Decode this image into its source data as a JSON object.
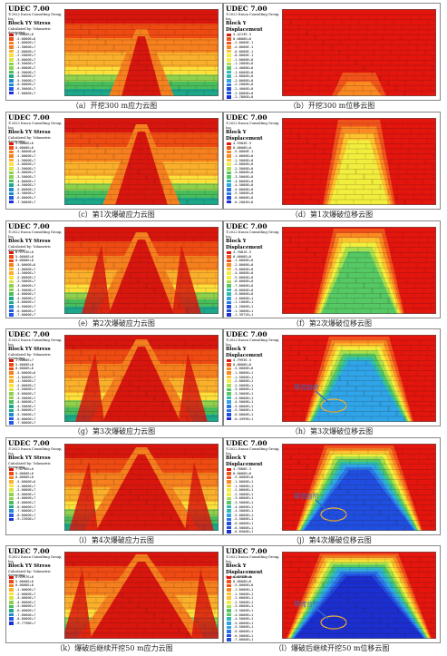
{
  "panels": [
    {
      "udec": "UDEC 7.00",
      "copyright": "©2022 Itasca Consulting Group, Inc.",
      "title": "Block YY Stress",
      "subtitle": "Calculated by: Volumetric Averaging",
      "kind": "stress",
      "stage": 0,
      "legend": [
        "0.0000E+0",
        "-5.0000E+6",
        "-1.0000E+7",
        "-1.5000E+7",
        "-2.0000E+7",
        "-2.5000E+7",
        "-3.0000E+7",
        "-3.5000E+7",
        "-4.0000E+7",
        "-4.5000E+7",
        "-5.0000E+7",
        "-5.5000E+7",
        "-6.0000E+7",
        "-6.5000E+7",
        "-7.0000E+7"
      ],
      "caption": "（a）开挖300 m应力云图"
    },
    {
      "udec": "UDEC 7.00",
      "copyright": "©2022 Itasca Consulting Group, Inc.",
      "title": "Block Y Displacement",
      "subtitle": "",
      "kind": "disp",
      "stage": 0,
      "legend": [
        "4.4213E-3",
        "0.0000E+0",
        "-2.0000E-1",
        "-4.0000E-1",
        "-6.0000E-1",
        "-8.0000E-1",
        "-1.0000E+0",
        "-1.2000E+0",
        "-1.4000E+0",
        "-1.6000E+0",
        "-1.8000E+0",
        "-2.0000E+0",
        "-2.2000E+0",
        "-2.4000E+0",
        "-2.6000E+0",
        "-2.7886E+0"
      ],
      "caption": "（b）开挖300 m位移云图"
    },
    {
      "udec": "UDEC 7.00",
      "copyright": "©2022 Itasca Consulting Group, Inc.",
      "title": "Block YY Stress",
      "subtitle": "Calculated by: Volumetric Averaging",
      "kind": "stress",
      "stage": 1,
      "legend": [
        "5.0000E+6",
        "0.0000E+0",
        "-5.0000E+6",
        "-1.0000E+7",
        "-1.5000E+7",
        "-2.0000E+7",
        "-2.5000E+7",
        "-3.0000E+7",
        "-3.5000E+7",
        "-4.0000E+7",
        "-4.5000E+7",
        "-5.0000E+7",
        "-5.5000E+7",
        "-6.0000E+7",
        "-7.0000E+7"
      ],
      "caption": "（c）第1次爆破应力云图"
    },
    {
      "udec": "UDEC 7.00",
      "copyright": "©2022 Itasca Consulting Group, Inc.",
      "title": "Block Y Displacement",
      "subtitle": "",
      "kind": "disp",
      "stage": 1,
      "legend": [
        "4.5904E-3",
        "0.0000E+0",
        "-5.0000E-1",
        "-1.0000E+0",
        "-1.5000E+0",
        "-2.0000E+0",
        "-2.5000E+0",
        "-3.0000E+0",
        "-3.5000E+0",
        "-4.0000E+0",
        "-4.5000E+0",
        "-5.0000E+0",
        "-5.5000E+0",
        "-6.0000E+0",
        "-6.2004E+0"
      ],
      "caption": "（d）第1次爆破位移云图"
    },
    {
      "udec": "UDEC 7.00",
      "copyright": "©2022 Itasca Consulting Group, Inc.",
      "title": "Block YY Stress",
      "subtitle": "Calculated by: Volumetric Averaging",
      "kind": "stress",
      "stage": 2,
      "legend": [
        "8.9713E+6",
        "5.0000E+6",
        "0.0000E+0",
        "-5.0000E+6",
        "-1.0000E+7",
        "-1.5000E+7",
        "-2.0000E+7",
        "-2.5000E+7",
        "-3.0000E+7",
        "-3.5000E+7",
        "-4.0000E+7",
        "-4.5000E+7",
        "-5.0000E+7",
        "-5.5000E+7",
        "-6.0000E+7",
        "-7.0000E+7",
        "-8.0000E+7"
      ],
      "caption": "（e）第2次爆破应力云图"
    },
    {
      "udec": "UDEC 7.00",
      "copyright": "©2022 Itasca Consulting Group, Inc.",
      "title": "Block Y Displacement",
      "subtitle": "",
      "kind": "disp",
      "stage": 2,
      "legend": [
        "4.7081E-3",
        "0.0000E+0",
        "-1.0000E+0",
        "-2.0000E+0",
        "-3.0000E+0",
        "-4.0000E+0",
        "-5.0000E+0",
        "-6.0000E+0",
        "-7.0000E+0",
        "-8.0000E+0",
        "-9.0000E+0",
        "-1.0000E+1",
        "-1.1000E+1",
        "-1.2000E+1",
        "-1.3000E+1",
        "-1.3972E+1"
      ],
      "caption": "（f）第2次爆破位移云图"
    },
    {
      "udec": "UDEC 7.00",
      "copyright": "©2022 Itasca Consulting Group, Inc.",
      "title": "Block YY Stress",
      "subtitle": "Calculated by: Volumetric Averaging",
      "kind": "stress",
      "stage": 3,
      "legend": [
        "1.0000E+7",
        "5.0000E+6",
        "0.0000E+0",
        "-5.0000E+6",
        "-1.0000E+7",
        "-1.5000E+7",
        "-2.0000E+7",
        "-2.5000E+7",
        "-3.0000E+7",
        "-3.5000E+7",
        "-4.0000E+7",
        "-4.5000E+7",
        "-5.0000E+7",
        "-5.5000E+7",
        "-6.0000E+7",
        "-7.0000E+7",
        "-7.9011E+7"
      ],
      "caption": "（g）第3次爆破应力云图"
    },
    {
      "udec": "UDEC 7.00",
      "copyright": "©2022 Itasca Consulting Group, Inc.",
      "title": "Block Y Displacement",
      "subtitle": "",
      "kind": "disp",
      "stage": 3,
      "legend": [
        "4.7993E-3",
        "0.0000E+0",
        "-5.0000E+0",
        "-1.0000E+1",
        "-1.5000E+1",
        "-2.0000E+1",
        "-2.5000E+1",
        "-3.0000E+1",
        "-3.5000E+1",
        "-4.0000E+1",
        "-4.5000E+1",
        "-5.0000E+1",
        "-5.5000E+1",
        "-6.0000E+1",
        "-6.4599E+1"
      ],
      "annotation": "导流台阶",
      "caption": "（h）第3次爆破位移云图"
    },
    {
      "udec": "UDEC 7.00",
      "copyright": "©2022 Itasca Consulting Group, Inc.",
      "title": "Block YY Stress",
      "subtitle": "Calculated by: Volumetric Averaging",
      "kind": "stress",
      "stage": 4,
      "legend": [
        "7.8796E+6",
        "5.0000E+6",
        "0.0000E+0",
        "-5.0000E+6",
        "-1.0000E+7",
        "-2.0000E+7",
        "-3.0000E+7",
        "-4.0000E+7",
        "-5.0000E+7",
        "-6.0000E+7",
        "-7.0000E+7",
        "-8.0000E+7",
        "-9.2350E+7"
      ],
      "caption": "（i）第4次爆破应力云图"
    },
    {
      "udec": "UDEC 7.00",
      "copyright": "©2022 Itasca Consulting Group, Inc.",
      "title": "Block Y Displacement",
      "subtitle": "",
      "kind": "disp",
      "stage": 4,
      "legend": [
        "4.7800E-3",
        "0.0000E+0",
        "-5.0000E+0",
        "-1.0000E+1",
        "-1.5000E+1",
        "-2.0000E+1",
        "-2.5000E+1",
        "-3.0000E+1",
        "-3.5000E+1",
        "-4.0000E+1",
        "-4.5000E+1",
        "-5.0000E+1",
        "-5.5000E+1",
        "-6.0000E+1",
        "-6.5000E+1",
        "-6.8500E+1"
      ],
      "annotation": "导流台阶",
      "caption": "（j）第4次爆破位移云图"
    },
    {
      "udec": "UDEC 7.00",
      "copyright": "©2022 Itasca Consulting Group, Inc.",
      "title": "Block YY Stress",
      "subtitle": "Calculated by: Volumetric Averaging",
      "kind": "stress",
      "stage": 5,
      "legend": [
        "8.0957E+6",
        "5.0000E+6",
        "0.0000E+0",
        "-1.0000E+7",
        "-2.0000E+7",
        "-3.0000E+7",
        "-4.0000E+7",
        "-5.0000E+7",
        "-6.0000E+7",
        "-7.0000E+7",
        "-8.0000E+7",
        "-9.7798E+7"
      ],
      "caption": "（k）爆破后继续开挖50 m应力云图"
    },
    {
      "udec": "UDEC 7.00",
      "copyright": "©2022 Itasca Consulting Group, Inc.",
      "title": "Block Y Displacement",
      "subtitle": "Calculated from",
      "kind": "disp",
      "stage": 5,
      "legend": [
        "4.8710E-3",
        "0.0000E+0",
        "-5.0000E+0",
        "-1.0000E+1",
        "-1.5000E+1",
        "-2.0000E+1",
        "-2.5000E+1",
        "-3.0000E+1",
        "-3.5000E+1",
        "-4.0000E+1",
        "-4.5000E+1",
        "-5.0000E+1",
        "-5.5000E+1",
        "-6.0000E+1",
        "-6.5000E+1",
        "-7.0000E+1",
        "-7.4660E+1"
      ],
      "annotation": "导流台阶",
      "caption": "（l）爆破后继续开挖50 m位移云图"
    }
  ],
  "colors": {
    "stress": [
      "#d9160e",
      "#ef4a12",
      "#f7801e",
      "#fbb02b",
      "#fde03a",
      "#d7e63d",
      "#8fd14c",
      "#47bd5c",
      "#1ba88b",
      "#1e8ad0",
      "#2358e6",
      "#1c2fd8"
    ],
    "disp": [
      "#e3150d",
      "#f2531a",
      "#fa8a21",
      "#fdc22e",
      "#f2ee3d",
      "#a9df4b",
      "#55c963",
      "#2fbcb2",
      "#2fa4e8",
      "#2a78e8",
      "#1f4ee0",
      "#1b2ed0"
    ],
    "annotation": "#2f6fd6",
    "ellipse": "#f3b431"
  }
}
